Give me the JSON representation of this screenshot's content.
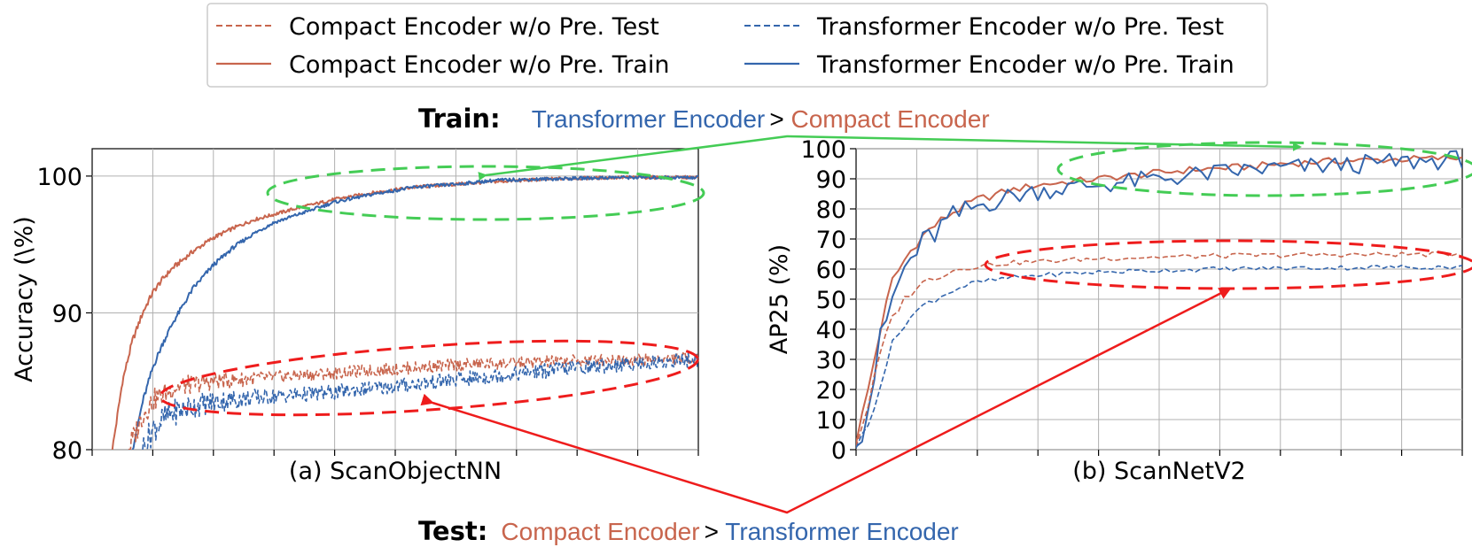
{
  "colors": {
    "compact": "#c8654d",
    "transformer": "#3466ad",
    "train_ellipse": "#44cc55",
    "test_ellipse": "#ee1c1c",
    "grid": "#b0b0b0"
  },
  "legend": {
    "items": [
      {
        "label": "Compact Encoder w/o Pre. Test",
        "series": "compact",
        "style": "dashed"
      },
      {
        "label": "Compact Encoder w/o Pre. Train",
        "series": "compact",
        "style": "solid"
      },
      {
        "label": "Transformer Encoder w/o Pre. Test",
        "series": "transformer",
        "style": "dashed"
      },
      {
        "label": "Transformer Encoder w/o Pre. Train",
        "series": "transformer",
        "style": "solid"
      }
    ]
  },
  "annotations": {
    "train": {
      "prefix": "Train:",
      "first": "Transformer Encoder",
      "sep": " > ",
      "second": "Compact Encoder"
    },
    "test": {
      "prefix": "Test:",
      "first": "Compact Encoder",
      "sep": " > ",
      "second": "Transformer Encoder"
    }
  },
  "chart_data": [
    {
      "type": "line",
      "caption": "(a) ScanObjectNN",
      "xlabel": "",
      "ylabel": "Accuracy (\\%)",
      "ylim": [
        80,
        102
      ],
      "yticks": [
        80,
        90,
        100
      ],
      "xlim": [
        0,
        300
      ],
      "grid": true,
      "x_tick_count": 10,
      "series": [
        {
          "key": "compact_train",
          "color_key": "compact",
          "style": "solid",
          "x": [
            10,
            12,
            15,
            20,
            25,
            30,
            35,
            40,
            50,
            60,
            70,
            80,
            90,
            100,
            120,
            140,
            160,
            180,
            200,
            230,
            260,
            300
          ],
          "y": [
            80.0,
            82.0,
            85.0,
            88.0,
            90.0,
            91.5,
            92.5,
            93.3,
            94.5,
            95.5,
            96.2,
            96.8,
            97.2,
            97.6,
            98.3,
            98.8,
            99.2,
            99.4,
            99.6,
            99.8,
            99.9,
            99.9
          ]
        },
        {
          "key": "transformer_train",
          "color_key": "transformer",
          "style": "solid",
          "x": [
            20,
            25,
            30,
            35,
            40,
            50,
            60,
            70,
            80,
            90,
            100,
            120,
            140,
            160,
            180,
            200,
            230,
            260,
            300
          ],
          "y": [
            80.0,
            83.5,
            86.0,
            87.8,
            89.3,
            91.8,
            93.5,
            94.8,
            95.8,
            96.6,
            97.1,
            98.1,
            98.7,
            99.2,
            99.4,
            99.7,
            99.8,
            99.9,
            99.9
          ]
        },
        {
          "key": "compact_test",
          "color_key": "compact",
          "style": "dashed",
          "x": [
            18,
            25,
            30,
            40,
            50,
            60,
            80,
            100,
            120,
            140,
            160,
            180,
            200,
            220,
            240,
            260,
            280,
            300
          ],
          "y": [
            80.0,
            82.5,
            83.6,
            84.5,
            84.8,
            85.0,
            85.2,
            85.4,
            85.6,
            85.8,
            86.0,
            86.2,
            86.3,
            86.4,
            86.5,
            86.6,
            86.6,
            86.7
          ]
        },
        {
          "key": "transformer_test",
          "color_key": "transformer",
          "style": "dashed",
          "x": [
            25,
            30,
            35,
            40,
            50,
            60,
            80,
            100,
            120,
            140,
            160,
            180,
            200,
            220,
            240,
            260,
            280,
            300
          ],
          "y": [
            80.0,
            81.5,
            82.2,
            82.7,
            83.2,
            83.5,
            83.8,
            84.0,
            84.2,
            84.5,
            84.8,
            85.1,
            85.4,
            85.7,
            86.0,
            86.2,
            86.4,
            86.6
          ]
        }
      ]
    },
    {
      "type": "line",
      "caption": "(b) ScanNetV2",
      "xlabel": "",
      "ylabel": "AP25 (%)",
      "ylim": [
        0,
        100
      ],
      "yticks": [
        0,
        10,
        20,
        30,
        40,
        50,
        60,
        70,
        80,
        90,
        100
      ],
      "xlim": [
        0,
        100
      ],
      "grid": true,
      "x_tick_count": 10,
      "series": [
        {
          "key": "compact_train",
          "color_key": "compact",
          "style": "solid",
          "x": [
            0,
            2,
            4,
            6,
            8,
            10,
            12,
            14,
            16,
            18,
            20,
            25,
            30,
            35,
            40,
            45,
            50,
            55,
            60,
            65,
            70,
            75,
            80,
            85,
            90,
            95,
            100
          ],
          "y": [
            2,
            20,
            40,
            56,
            63,
            69,
            73,
            76,
            79,
            81,
            83,
            86,
            88,
            89,
            90,
            91,
            92,
            93,
            93.5,
            94,
            95,
            95.5,
            96,
            96.2,
            96.5,
            96.7,
            97
          ]
        },
        {
          "key": "transformer_train",
          "color_key": "transformer",
          "style": "solid",
          "x": [
            0,
            2,
            4,
            6,
            8,
            10,
            12,
            14,
            16,
            18,
            20,
            25,
            30,
            35,
            40,
            45,
            50,
            55,
            60,
            65,
            70,
            75,
            80,
            85,
            90,
            95,
            100
          ],
          "y": [
            1,
            15,
            35,
            50,
            60,
            66,
            70,
            74,
            77,
            79,
            81,
            84,
            86,
            87,
            88,
            89,
            90,
            91,
            92,
            93,
            93.5,
            94,
            94.5,
            95,
            95.5,
            96,
            96.5
          ]
        },
        {
          "key": "compact_test",
          "color_key": "compact",
          "style": "dashed",
          "x": [
            0,
            2,
            4,
            6,
            8,
            10,
            12,
            14,
            16,
            18,
            20,
            25,
            30,
            35,
            40,
            45,
            50,
            55,
            60,
            65,
            70,
            75,
            80,
            85,
            90,
            95,
            100
          ],
          "y": [
            1,
            15,
            32,
            44,
            50,
            54,
            56.5,
            58,
            59.5,
            60.5,
            61,
            62,
            62.5,
            63,
            63.5,
            63.8,
            64,
            64.2,
            64.4,
            64.5,
            64.6,
            64.7,
            64.8,
            64.8,
            64.9,
            64.9,
            65
          ]
        },
        {
          "key": "transformer_test",
          "color_key": "transformer",
          "style": "dashed",
          "x": [
            0,
            2,
            4,
            6,
            8,
            10,
            12,
            14,
            16,
            18,
            20,
            25,
            30,
            35,
            40,
            45,
            50,
            55,
            60,
            65,
            70,
            75,
            80,
            85,
            90,
            95,
            100
          ],
          "y": [
            0.5,
            8,
            22,
            35,
            42,
            46,
            49,
            51,
            53,
            54.5,
            55.5,
            57,
            58,
            58.5,
            59,
            59.3,
            59.6,
            59.8,
            60,
            60.2,
            60.3,
            60.4,
            60.5,
            60.6,
            60.6,
            60.7,
            60.7
          ]
        }
      ]
    }
  ]
}
